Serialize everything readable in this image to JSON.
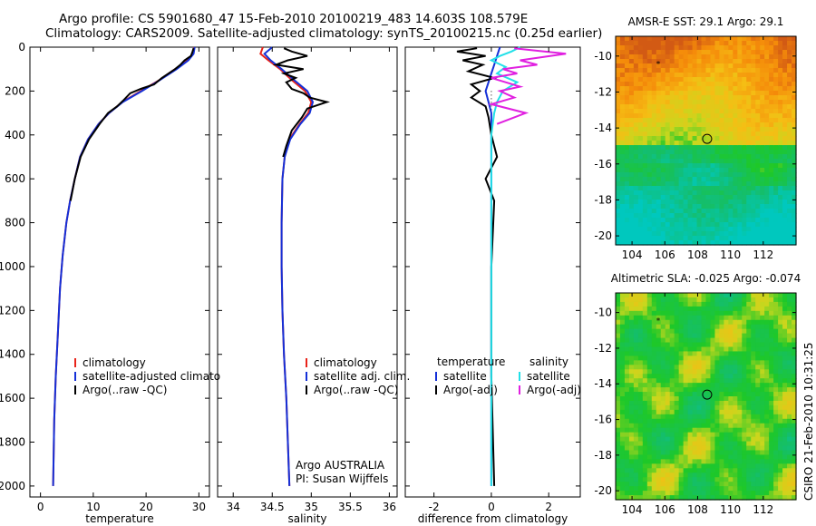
{
  "header": {
    "line1": "Argo profile: CS 5901680_47 15-Feb-2010 20100219_483 14.603S 108.579E",
    "line2": "Climatology: CARS2009. Satellite-adjusted climatology: synTS_20100215.nc (0.25d earlier)"
  },
  "side_stamp": "CSIRO 21-Feb-2010 10:31:25",
  "colors": {
    "red": "#e8231a",
    "blue": "#1430d8",
    "black": "#000000",
    "cyan": "#22e0e8",
    "magenta": "#e020e0"
  },
  "chart_data": [
    {
      "type": "line",
      "xlabel": "temperature",
      "ylabel": "",
      "xlim": [
        -2,
        32
      ],
      "ylim": [
        2050,
        0
      ],
      "xticks": [
        0,
        10,
        20,
        30
      ],
      "yticks": [
        0,
        200,
        400,
        600,
        800,
        1000,
        1200,
        1400,
        1600,
        1800,
        2000
      ],
      "legend": [
        "climatology",
        "satellite-adjusted climatology",
        "Argo(..raw -QC)"
      ],
      "legend_display": [
        "climatology",
        "satellite-adjusted climatolog",
        "Argo(..raw -QC)"
      ],
      "series": [
        {
          "name": "climatology",
          "color": "red",
          "x": [
            29.1,
            28.9,
            27.8,
            25.5,
            22.5,
            19.0,
            15.5,
            13.0,
            11.0,
            9.0,
            7.5,
            6.5,
            5.6,
            4.9,
            4.2,
            3.7,
            3.3,
            2.9,
            2.6,
            2.5,
            2.4
          ],
          "y": [
            0,
            30,
            60,
            100,
            150,
            200,
            250,
            300,
            350,
            420,
            500,
            600,
            700,
            800,
            950,
            1100,
            1300,
            1500,
            1700,
            1850,
            2000
          ]
        },
        {
          "name": "satellite-adjusted climatology",
          "color": "blue",
          "x": [
            29.2,
            29.0,
            28.0,
            25.8,
            22.6,
            19.2,
            15.6,
            13.0,
            11.0,
            9.0,
            7.5,
            6.5,
            5.6,
            4.9,
            4.2,
            3.7,
            3.3,
            2.9,
            2.6,
            2.5,
            2.4
          ],
          "y": [
            0,
            30,
            60,
            100,
            150,
            200,
            250,
            300,
            350,
            420,
            500,
            600,
            700,
            800,
            950,
            1100,
            1300,
            1500,
            1700,
            1850,
            2000
          ]
        },
        {
          "name": "Argo(..raw -QC)",
          "color": "black",
          "x": [
            29.0,
            28.8,
            28.5,
            27.3,
            26.5,
            25.5,
            23.0,
            21.5,
            19.0,
            17.0,
            15.8,
            14.5,
            12.8,
            11.2,
            9.2,
            7.6,
            6.5,
            5.7
          ],
          "y": [
            5,
            20,
            40,
            60,
            80,
            100,
            140,
            170,
            190,
            210,
            240,
            270,
            300,
            350,
            420,
            500,
            600,
            700
          ]
        }
      ]
    },
    {
      "type": "line",
      "xlabel": "salinity",
      "ylabel": "",
      "xlim": [
        33.8,
        36.1
      ],
      "ylim": [
        2050,
        0
      ],
      "xticks": [
        34,
        34.5,
        35,
        35.5,
        36
      ],
      "yticks": [
        0,
        200,
        400,
        600,
        800,
        1000,
        1200,
        1400,
        1600,
        1800,
        2000
      ],
      "legend": [
        "climatology",
        "satellite adj. clim.",
        "Argo(..raw -QC)"
      ],
      "annotation": [
        "Argo AUSTRALIA",
        "PI: Susan Wijffels"
      ],
      "series": [
        {
          "name": "climatology",
          "color": "red",
          "x": [
            34.38,
            34.35,
            34.45,
            34.6,
            34.75,
            34.92,
            35.0,
            34.96,
            34.85,
            34.72,
            34.66,
            34.63,
            34.62,
            34.62,
            34.63,
            34.65,
            34.68,
            34.7,
            34.72
          ],
          "y": [
            0,
            30,
            60,
            100,
            150,
            200,
            250,
            300,
            350,
            420,
            500,
            600,
            800,
            1000,
            1200,
            1400,
            1600,
            1800,
            2000
          ]
        },
        {
          "name": "satellite adj. clim.",
          "color": "blue",
          "x": [
            34.5,
            34.4,
            34.48,
            34.62,
            34.78,
            34.95,
            35.02,
            34.98,
            34.86,
            34.73,
            34.66,
            34.63,
            34.62,
            34.62,
            34.63,
            34.65,
            34.68,
            34.7,
            34.72
          ],
          "y": [
            0,
            30,
            60,
            100,
            150,
            200,
            250,
            300,
            350,
            420,
            500,
            600,
            800,
            1000,
            1200,
            1400,
            1600,
            1800,
            2000
          ]
        },
        {
          "name": "Argo(..raw -QC)",
          "color": "black",
          "x": [
            34.65,
            34.75,
            34.95,
            34.7,
            34.55,
            34.9,
            34.65,
            34.8,
            34.68,
            34.75,
            34.9,
            34.98,
            35.2,
            34.95,
            34.88,
            34.75,
            34.68,
            34.64
          ],
          "y": [
            5,
            20,
            40,
            60,
            80,
            100,
            120,
            140,
            160,
            190,
            210,
            230,
            250,
            280,
            320,
            380,
            450,
            500
          ]
        }
      ]
    },
    {
      "type": "line",
      "xlabel": "difference from climatology",
      "ylabel": "",
      "xlim": [
        -3,
        3.1
      ],
      "ylim": [
        2050,
        0
      ],
      "xticks": [
        -2,
        0,
        2
      ],
      "yticks": [
        0,
        200,
        400,
        600,
        800,
        1000,
        1200,
        1400,
        1600,
        1800,
        2000
      ],
      "legend_groups": [
        {
          "title": "temperature",
          "items": [
            "satellite",
            "Argo(-adj)"
          ]
        },
        {
          "title": "salinity",
          "items": [
            "satellite",
            "Argo(-adj)"
          ]
        }
      ],
      "series": [
        {
          "name": "temperature satellite",
          "color": "blue",
          "x": [
            0.3,
            0.2,
            0.1,
            0.0,
            -0.1,
            -0.2,
            -0.1,
            0.0,
            0.0,
            0.0,
            0.0,
            0.0,
            0.0
          ],
          "y": [
            0,
            40,
            80,
            120,
            160,
            200,
            250,
            300,
            400,
            600,
            1000,
            1500,
            2000
          ]
        },
        {
          "name": "temperature Argo(-adj)",
          "color": "black",
          "x": [
            -0.5,
            -1.2,
            -0.2,
            -1.0,
            -0.3,
            -0.8,
            0.1,
            -0.7,
            -0.4,
            -0.7,
            -0.2,
            -0.1,
            0.0,
            0.2,
            -0.2,
            0.1,
            0.0,
            0.0,
            0.1
          ],
          "y": [
            5,
            20,
            40,
            60,
            80,
            110,
            140,
            170,
            200,
            230,
            270,
            320,
            400,
            500,
            600,
            700,
            1000,
            1500,
            2000
          ]
        },
        {
          "name": "salinity satellite",
          "color": "cyan",
          "x": [
            1.0,
            0.7,
            0.3,
            0.0,
            0.5,
            0.2,
            0.9,
            0.4,
            0.2,
            0.1,
            0.0,
            0.0,
            0.0,
            0.0
          ],
          "y": [
            0,
            20,
            40,
            60,
            90,
            120,
            160,
            200,
            250,
            300,
            400,
            800,
            1500,
            2000
          ]
        },
        {
          "name": "salinity Argo(-adj)",
          "color": "magenta",
          "x": [
            0.8,
            1.5,
            2.6,
            1.8,
            1.0,
            1.6,
            0.4,
            0.9,
            0.0,
            0.5,
            1.0,
            0.3,
            0.8,
            0.0,
            1.2,
            0.2
          ],
          "y": [
            5,
            15,
            30,
            45,
            60,
            80,
            100,
            120,
            140,
            160,
            180,
            200,
            230,
            260,
            300,
            350
          ]
        }
      ]
    },
    {
      "type": "heatmap",
      "title": "AMSR-E SST: 29.1 Argo: 29.1",
      "xlim": [
        103,
        114
      ],
      "ylim": [
        -20.5,
        -8.9
      ],
      "xticks": [
        104,
        106,
        108,
        110,
        112
      ],
      "yticks": [
        -10,
        -12,
        -14,
        -16,
        -18,
        -20
      ],
      "marker": {
        "lon": 108.579,
        "lat": -14.603
      }
    },
    {
      "type": "heatmap",
      "title": "Altimetric SLA: -0.025 Argo: -0.074",
      "xlim": [
        103,
        114
      ],
      "ylim": [
        -20.5,
        -8.9
      ],
      "xticks": [
        104,
        106,
        108,
        110,
        112
      ],
      "yticks": [
        -10,
        -12,
        -14,
        -16,
        -18,
        -20
      ],
      "marker": {
        "lon": 108.579,
        "lat": -14.603
      }
    }
  ]
}
